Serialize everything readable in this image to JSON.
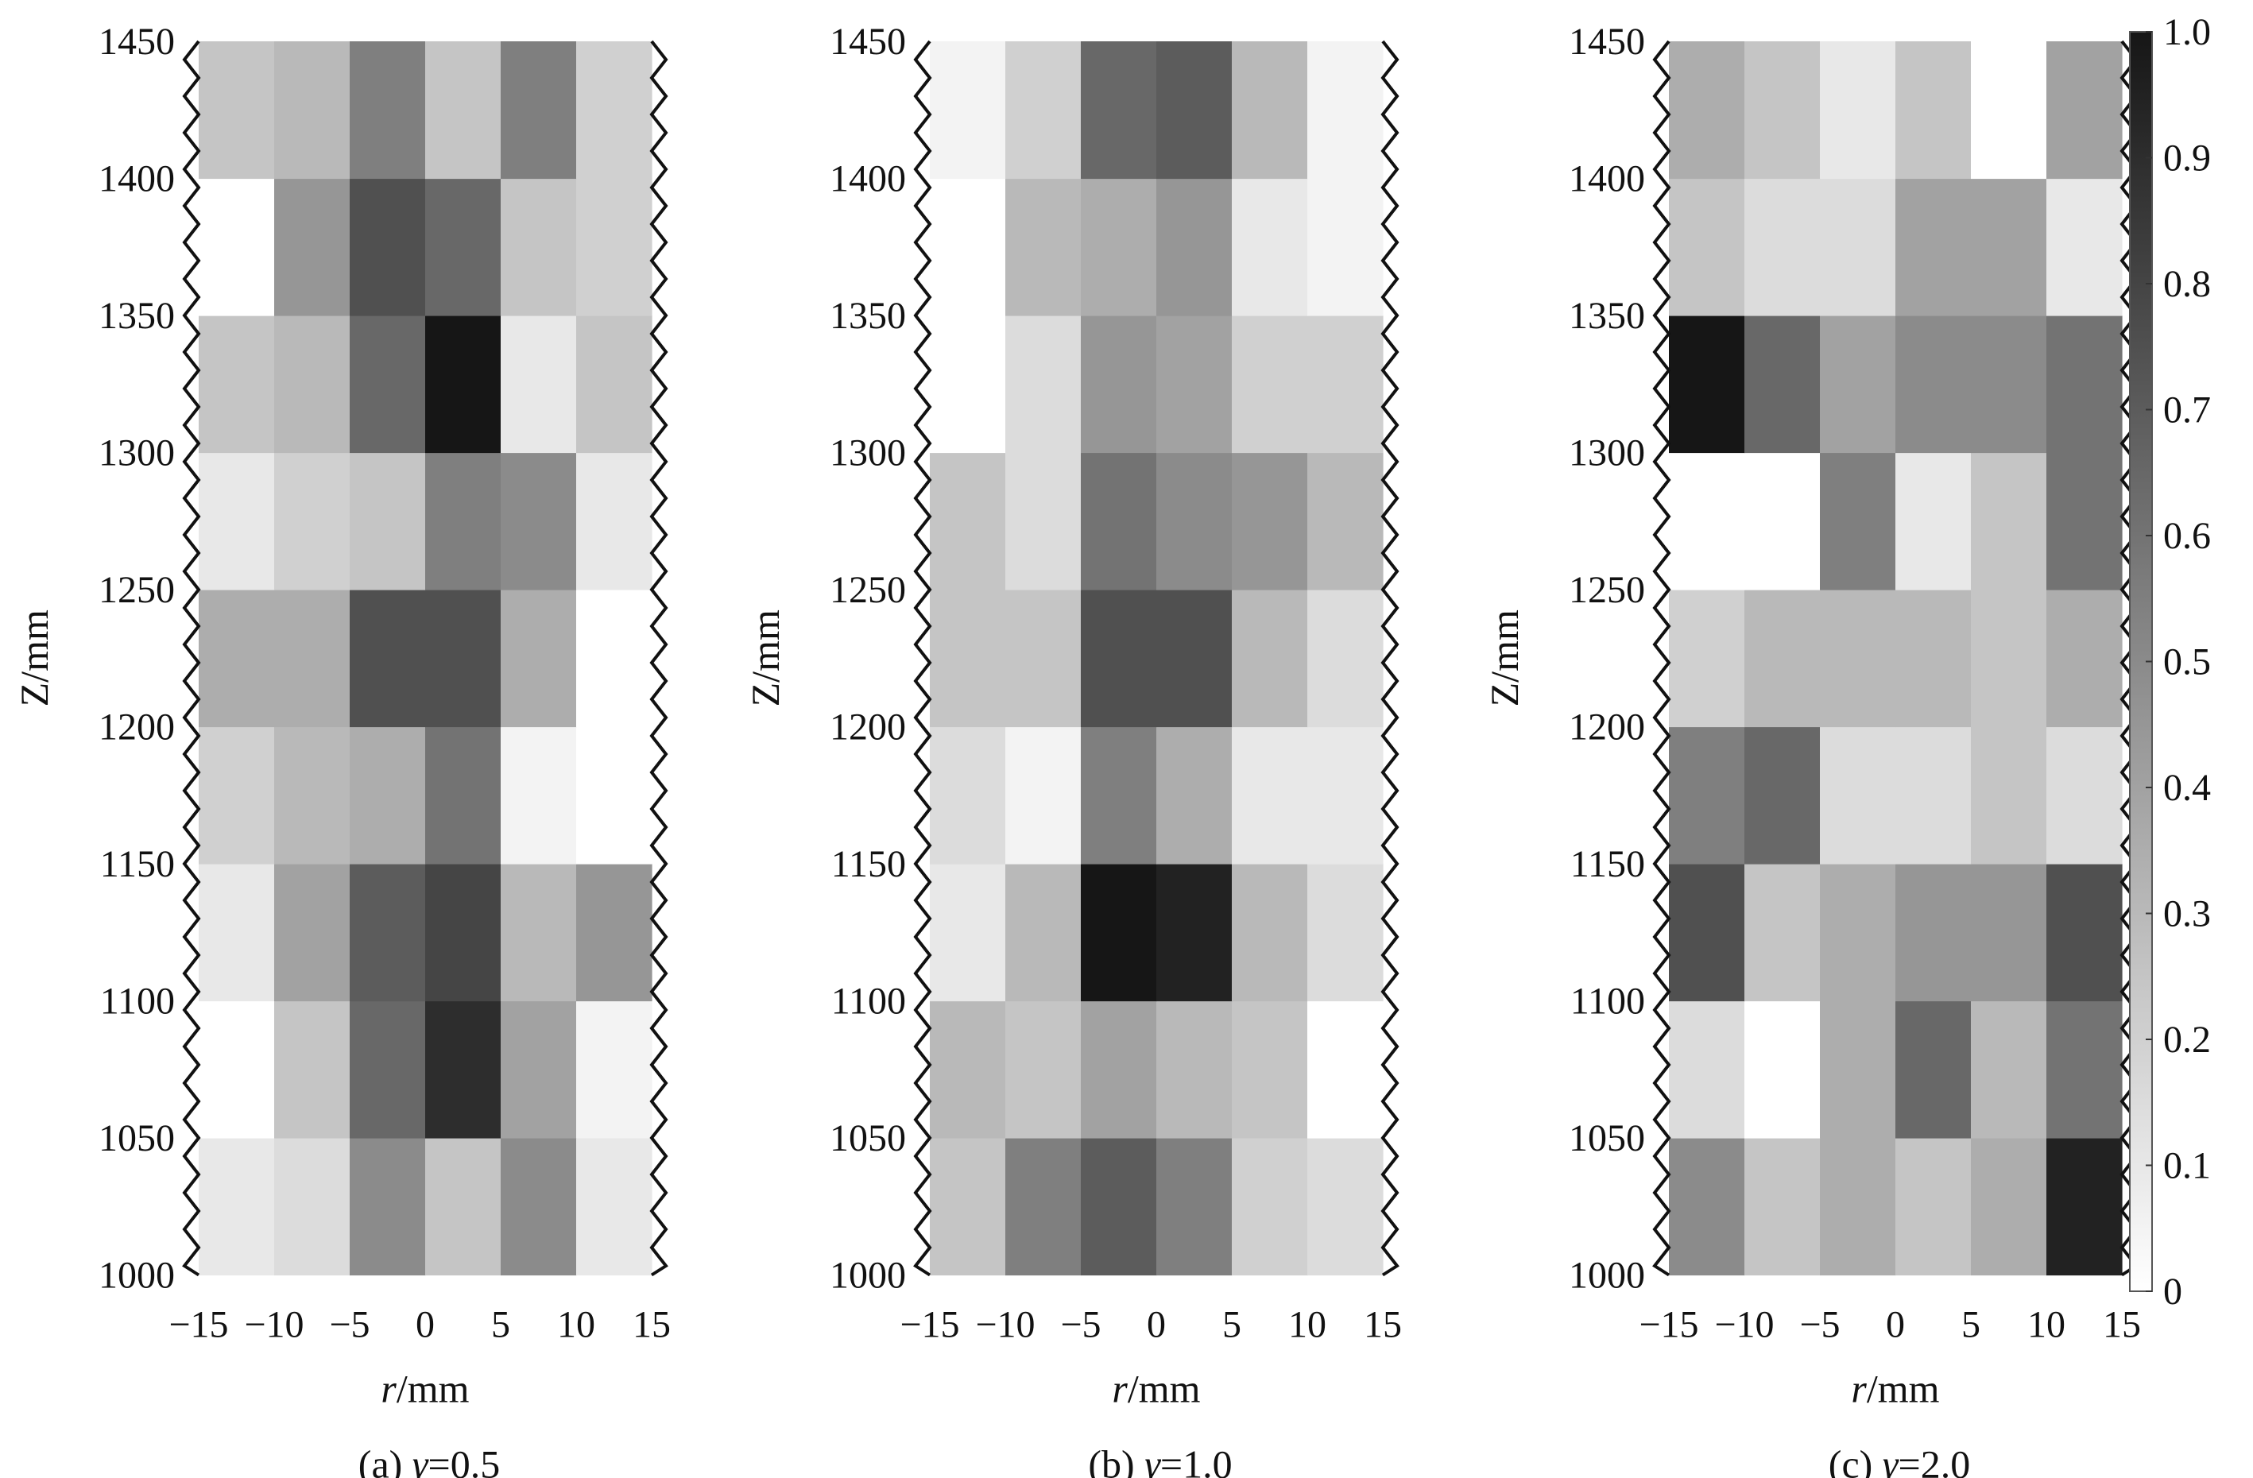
{
  "chart_data": [
    {
      "type": "heatmap",
      "caption_prefix": "(a) ",
      "caption_symbol": "γ",
      "caption_value": "=0.5",
      "xlabel_italic": "r",
      "xlabel_unit": "/mm",
      "ylabel": "Z/mm",
      "x_ticks": [
        "−15",
        "−10",
        "−5",
        "0",
        "5",
        "10",
        "15"
      ],
      "y_ticks": [
        "1000",
        "1050",
        "1100",
        "1150",
        "1200",
        "1250",
        "1300",
        "1350",
        "1400",
        "1450"
      ],
      "x_range": [
        -15,
        15
      ],
      "y_range": [
        1000,
        1450
      ],
      "r_bins": [
        -12.5,
        -7.5,
        -2.5,
        2.5,
        7.5,
        12.5
      ],
      "z_bins": [
        1000,
        1050,
        1100,
        1150,
        1200,
        1250,
        1300,
        1350,
        1400
      ],
      "values": [
        [
          0.1,
          0.15,
          0.5,
          0.25,
          0.5,
          0.1
        ],
        [
          0.0,
          0.25,
          0.65,
          0.9,
          0.4,
          0.05
        ],
        [
          0.1,
          0.4,
          0.7,
          0.8,
          0.3,
          0.45
        ],
        [
          0.2,
          0.3,
          0.35,
          0.6,
          0.05,
          0.0
        ],
        [
          0.35,
          0.35,
          0.75,
          0.75,
          0.35,
          0.0
        ],
        [
          0.1,
          0.2,
          0.25,
          0.55,
          0.5,
          0.1
        ],
        [
          0.25,
          0.3,
          0.65,
          1.0,
          0.1,
          0.25
        ],
        [
          0.0,
          0.45,
          0.75,
          0.65,
          0.25,
          0.2
        ],
        [
          0.25,
          0.3,
          0.55,
          0.25,
          0.55,
          0.2
        ]
      ]
    },
    {
      "type": "heatmap",
      "caption_prefix": "(b) ",
      "caption_symbol": "γ",
      "caption_value": "=1.0",
      "xlabel_italic": "r",
      "xlabel_unit": "/mm",
      "ylabel": "Z/mm",
      "x_ticks": [
        "−15",
        "−10",
        "−5",
        "0",
        "5",
        "10",
        "15"
      ],
      "y_ticks": [
        "1000",
        "1050",
        "1100",
        "1150",
        "1200",
        "1250",
        "1300",
        "1350",
        "1400",
        "1450"
      ],
      "x_range": [
        -15,
        15
      ],
      "y_range": [
        1000,
        1450
      ],
      "r_bins": [
        -12.5,
        -7.5,
        -2.5,
        2.5,
        7.5,
        12.5
      ],
      "z_bins": [
        1000,
        1050,
        1100,
        1150,
        1200,
        1250,
        1300,
        1350,
        1400
      ],
      "values": [
        [
          0.25,
          0.55,
          0.7,
          0.55,
          0.2,
          0.15
        ],
        [
          0.3,
          0.25,
          0.4,
          0.3,
          0.25,
          0.0
        ],
        [
          0.1,
          0.3,
          1.0,
          0.95,
          0.3,
          0.15
        ],
        [
          0.15,
          0.05,
          0.55,
          0.35,
          0.1,
          0.1
        ],
        [
          0.25,
          0.25,
          0.75,
          0.75,
          0.3,
          0.15
        ],
        [
          0.25,
          0.15,
          0.6,
          0.5,
          0.45,
          0.3
        ],
        [
          0.0,
          0.15,
          0.45,
          0.4,
          0.2,
          0.2
        ],
        [
          0.0,
          0.3,
          0.35,
          0.45,
          0.1,
          0.05
        ],
        [
          0.05,
          0.2,
          0.65,
          0.7,
          0.3,
          0.05
        ]
      ]
    },
    {
      "type": "heatmap",
      "caption_prefix": "(c) ",
      "caption_symbol": "γ",
      "caption_value": "=2.0",
      "xlabel_italic": "r",
      "xlabel_unit": "/mm",
      "ylabel": "Z/mm",
      "x_ticks": [
        "−15",
        "−10",
        "−5",
        "0",
        "5",
        "10",
        "15"
      ],
      "y_ticks": [
        "1000",
        "1050",
        "1100",
        "1150",
        "1200",
        "1250",
        "1300",
        "1350",
        "1400",
        "1450"
      ],
      "x_range": [
        -15,
        15
      ],
      "y_range": [
        1000,
        1450
      ],
      "r_bins": [
        -12.5,
        -7.5,
        -2.5,
        2.5,
        7.5,
        12.5
      ],
      "z_bins": [
        1000,
        1050,
        1100,
        1150,
        1200,
        1250,
        1300,
        1350,
        1400
      ],
      "values": [
        [
          0.5,
          0.25,
          0.35,
          0.25,
          0.35,
          0.95
        ],
        [
          0.15,
          0.0,
          0.35,
          0.65,
          0.3,
          0.6
        ],
        [
          0.75,
          0.25,
          0.35,
          0.45,
          0.45,
          0.75
        ],
        [
          0.55,
          0.65,
          0.15,
          0.15,
          0.25,
          0.15
        ],
        [
          0.2,
          0.3,
          0.3,
          0.3,
          0.25,
          0.35
        ],
        [
          0.0,
          0.0,
          0.55,
          0.1,
          0.25,
          0.6
        ],
        [
          1.0,
          0.65,
          0.4,
          0.5,
          0.5,
          0.6
        ],
        [
          0.25,
          0.15,
          0.15,
          0.4,
          0.4,
          0.1
        ],
        [
          0.35,
          0.25,
          0.1,
          0.25,
          0.0,
          0.4
        ]
      ]
    }
  ],
  "colorbar": {
    "ticks": [
      "0",
      "0.1",
      "0.2",
      "0.3",
      "0.4",
      "0.5",
      "0.6",
      "0.7",
      "0.8",
      "0.9",
      "1.0"
    ],
    "range": [
      0,
      1
    ],
    "colormap": "white-to-black gray"
  }
}
